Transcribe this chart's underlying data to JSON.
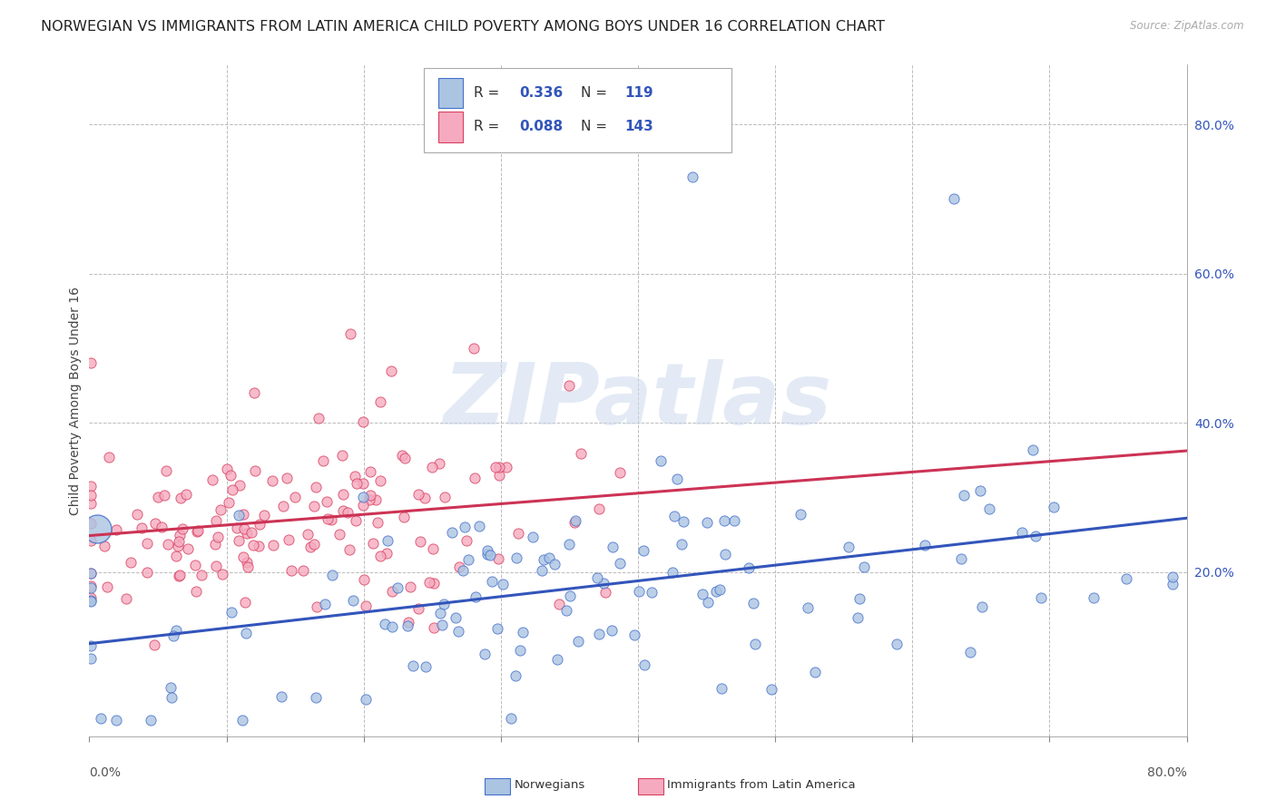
{
  "title": "NORWEGIAN VS IMMIGRANTS FROM LATIN AMERICA CHILD POVERTY AMONG BOYS UNDER 16 CORRELATION CHART",
  "source": "Source: ZipAtlas.com",
  "ylabel": "Child Poverty Among Boys Under 16",
  "xlim": [
    0.0,
    0.8
  ],
  "ylim": [
    -0.02,
    0.88
  ],
  "norwegian_R": 0.336,
  "norwegian_N": 119,
  "immigrant_R": 0.088,
  "immigrant_N": 143,
  "norwegian_color": "#aac4e2",
  "norwegian_edge": "#4470cc",
  "immigrant_color": "#f5aabf",
  "immigrant_edge": "#d84060",
  "norwegian_line_color": "#3355bb",
  "immigrant_line_color": "#cc3355",
  "background_color": "#ffffff",
  "grid_color": "#bbbbbb",
  "title_fontsize": 11.5,
  "axis_label_fontsize": 10,
  "tick_fontsize": 10,
  "legend_fontsize": 11,
  "seed_norwegian": 7,
  "seed_immigrant": 13
}
